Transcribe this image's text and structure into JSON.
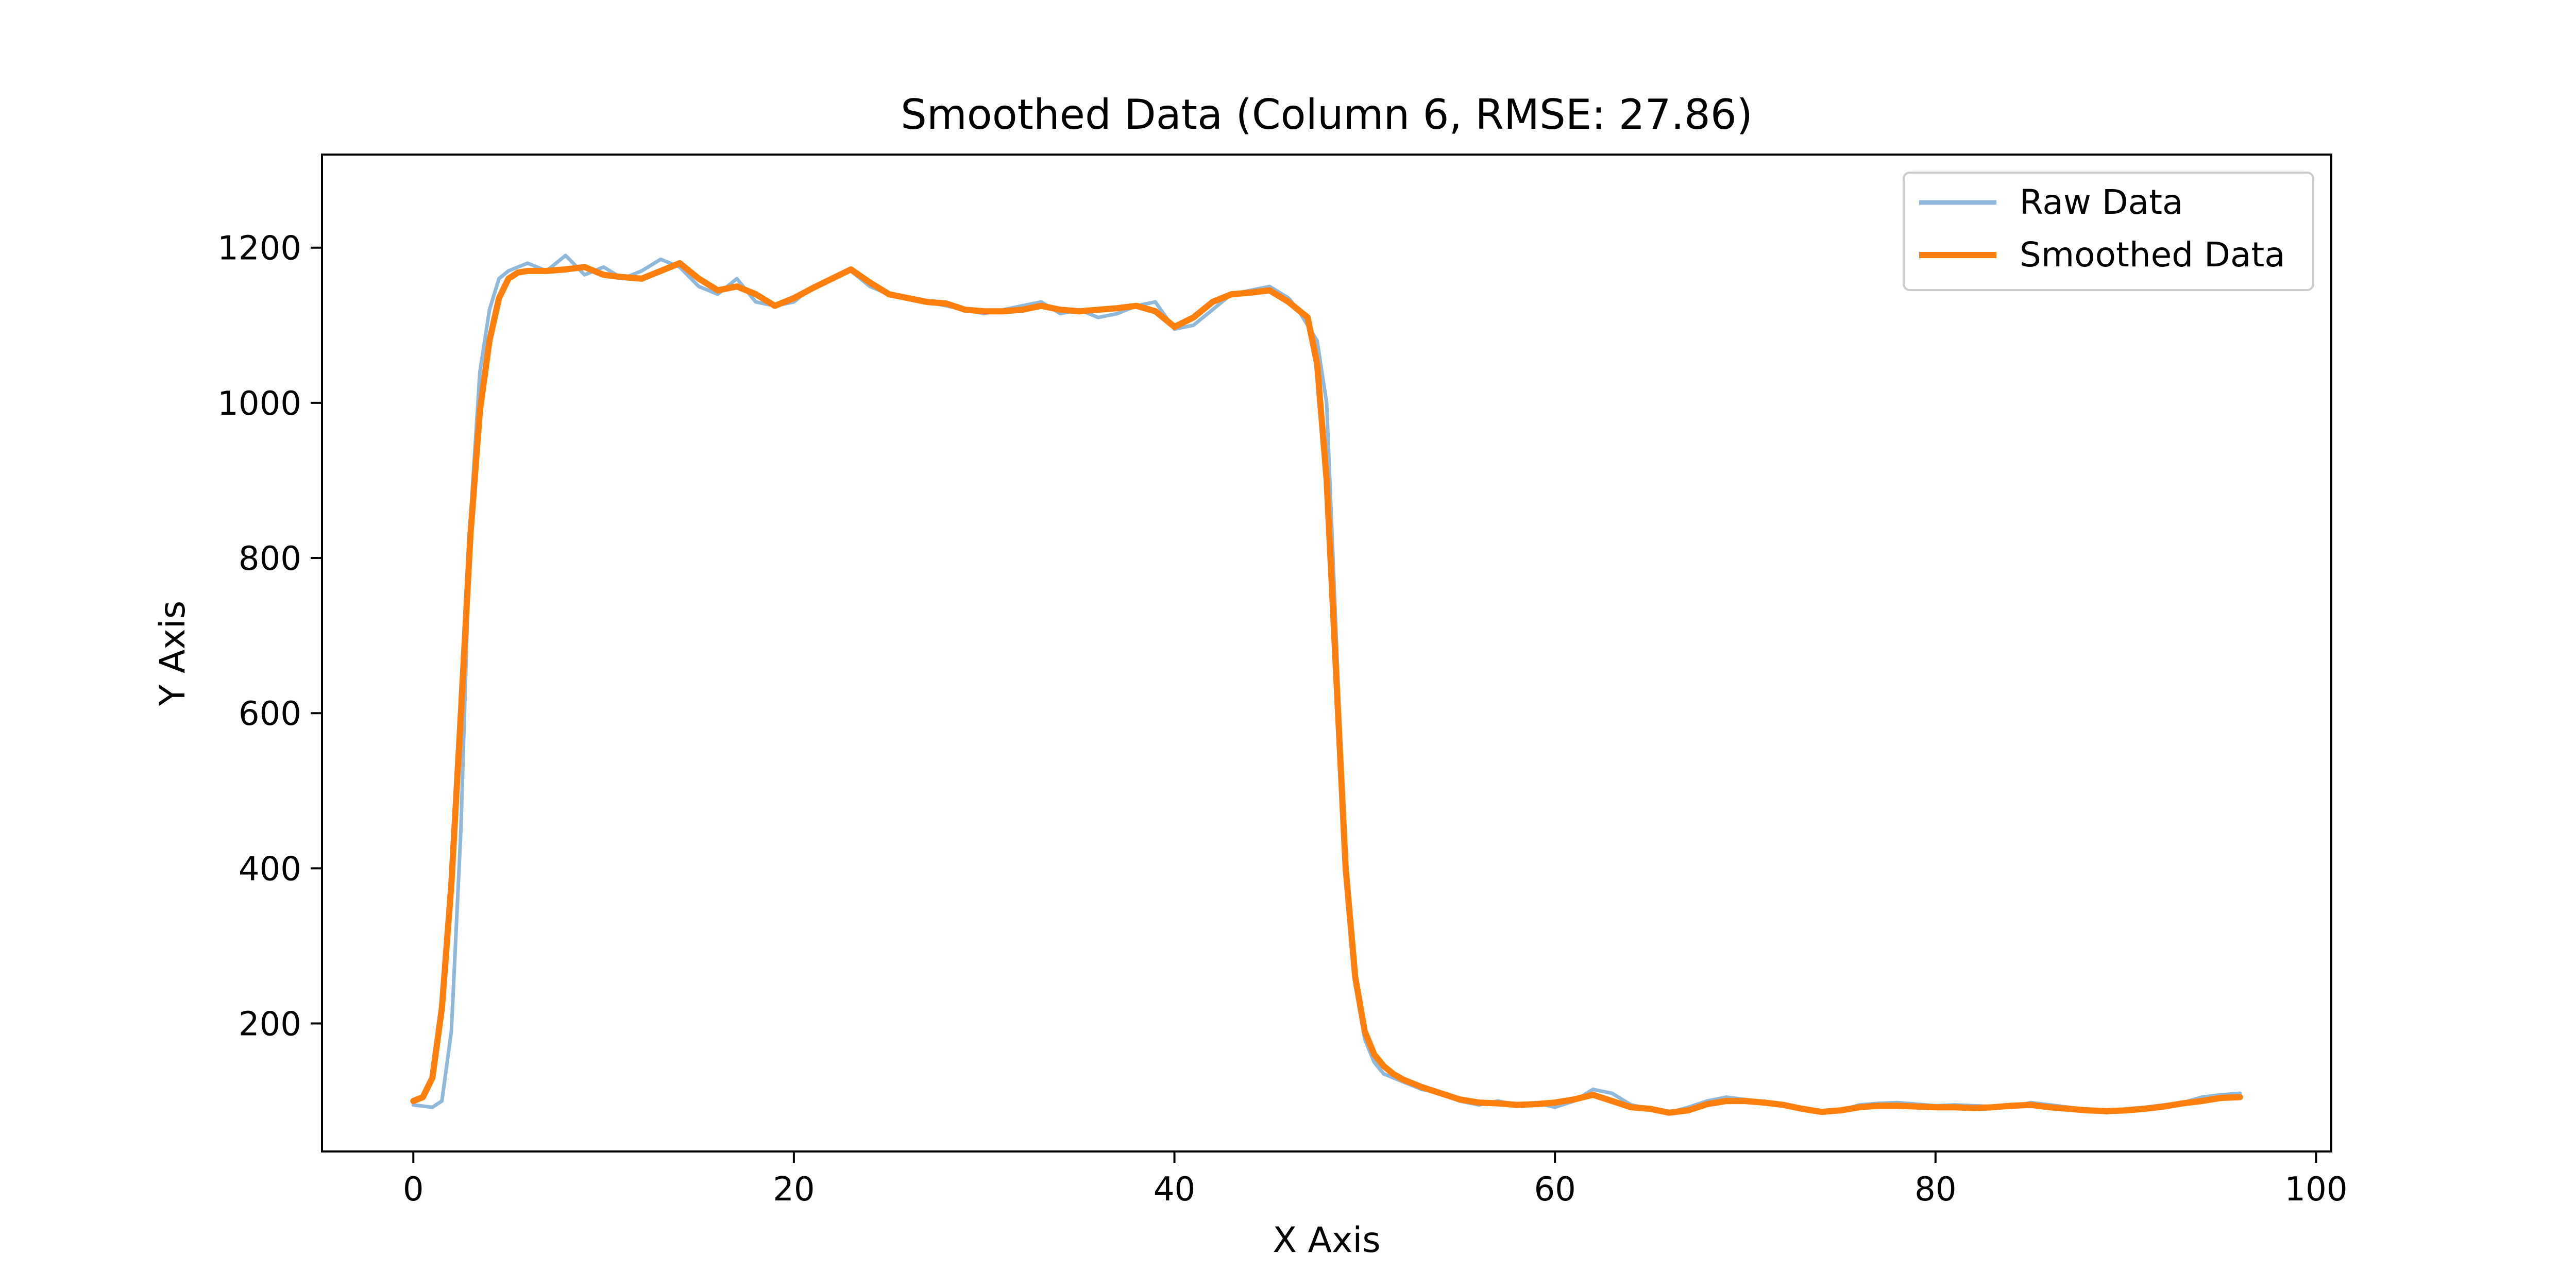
{
  "chart_data": {
    "type": "line",
    "title": "Smoothed Data (Column 6, RMSE: 27.86)",
    "xlabel": "X Axis",
    "ylabel": "Y Axis",
    "xlim": [
      -4.8,
      100.8
    ],
    "ylim": [
      35,
      1320
    ],
    "xticks": [
      0,
      20,
      40,
      60,
      80,
      100
    ],
    "yticks": [
      200,
      400,
      600,
      800,
      1000,
      1200
    ],
    "grid": false,
    "legend_position": "top-right",
    "series": [
      {
        "name": "Raw Data",
        "color": "#8fb8da",
        "x": [
          0,
          1,
          1.5,
          2,
          2.5,
          3,
          3.5,
          4,
          4.5,
          5,
          5.5,
          6,
          7,
          8,
          9,
          10,
          11,
          12,
          13,
          14,
          15,
          16,
          17,
          18,
          19,
          20,
          21,
          22,
          23,
          24,
          25,
          26,
          27,
          28,
          29,
          30,
          31,
          32,
          33,
          34,
          35,
          36,
          37,
          38,
          39,
          40,
          41,
          42,
          43,
          44,
          45,
          46,
          46.5,
          47,
          47.5,
          48,
          48.5,
          49,
          49.5,
          50,
          50.5,
          51,
          52,
          53,
          54,
          55,
          56,
          57,
          58,
          59,
          60,
          61,
          62,
          63,
          64,
          65,
          66,
          67,
          68,
          69,
          70,
          71,
          72,
          73,
          74,
          75,
          76,
          77,
          78,
          79,
          80,
          81,
          82,
          83,
          84,
          85,
          86,
          87,
          88,
          89,
          90,
          91,
          92,
          93,
          94,
          95,
          96
        ],
        "y": [
          95,
          92,
          100,
          190,
          450,
          850,
          1040,
          1120,
          1160,
          1170,
          1175,
          1180,
          1170,
          1190,
          1165,
          1175,
          1160,
          1170,
          1185,
          1175,
          1150,
          1140,
          1160,
          1130,
          1125,
          1130,
          1150,
          1160,
          1170,
          1150,
          1140,
          1135,
          1130,
          1125,
          1120,
          1115,
          1120,
          1125,
          1130,
          1115,
          1120,
          1110,
          1115,
          1125,
          1130,
          1095,
          1100,
          1120,
          1140,
          1145,
          1150,
          1135,
          1120,
          1100,
          1080,
          1000,
          700,
          400,
          250,
          180,
          150,
          135,
          125,
          115,
          110,
          100,
          95,
          100,
          95,
          98,
          92,
          100,
          115,
          110,
          95,
          90,
          85,
          92,
          100,
          105,
          102,
          98,
          95,
          90,
          85,
          88,
          95,
          97,
          98,
          96,
          94,
          95,
          94,
          93,
          92,
          98,
          95,
          92,
          88,
          85,
          90,
          92,
          95,
          98,
          105,
          108,
          110
        ]
      },
      {
        "name": "Smoothed Data",
        "color": "#ff7f0e",
        "x": [
          0,
          0.5,
          1,
          1.5,
          2,
          2.5,
          3,
          3.5,
          4,
          4.5,
          5,
          5.5,
          6,
          7,
          8,
          9,
          10,
          11,
          12,
          13,
          14,
          15,
          16,
          17,
          18,
          19,
          20,
          21,
          22,
          23,
          24,
          25,
          26,
          27,
          28,
          29,
          30,
          31,
          32,
          33,
          34,
          35,
          36,
          37,
          38,
          39,
          40,
          41,
          42,
          43,
          44,
          45,
          46,
          46.5,
          47,
          47.5,
          48,
          48.5,
          49,
          49.5,
          50,
          50.5,
          51,
          51.5,
          52,
          53,
          54,
          55,
          56,
          57,
          58,
          59,
          60,
          61,
          62,
          63,
          64,
          65,
          66,
          67,
          68,
          69,
          70,
          71,
          72,
          73,
          74,
          75,
          76,
          77,
          78,
          79,
          80,
          81,
          82,
          83,
          84,
          85,
          86,
          87,
          88,
          89,
          90,
          91,
          92,
          93,
          94,
          95,
          96
        ],
        "y": [
          100,
          105,
          130,
          220,
          380,
          600,
          830,
          990,
          1080,
          1135,
          1160,
          1168,
          1170,
          1170,
          1172,
          1175,
          1165,
          1162,
          1160,
          1170,
          1180,
          1160,
          1145,
          1150,
          1140,
          1125,
          1135,
          1148,
          1160,
          1172,
          1155,
          1140,
          1135,
          1130,
          1128,
          1120,
          1118,
          1118,
          1120,
          1125,
          1120,
          1118,
          1120,
          1122,
          1125,
          1118,
          1098,
          1110,
          1130,
          1140,
          1142,
          1145,
          1130,
          1120,
          1110,
          1050,
          900,
          650,
          400,
          260,
          190,
          160,
          145,
          135,
          128,
          118,
          110,
          102,
          98,
          97,
          95,
          96,
          98,
          102,
          108,
          100,
          92,
          90,
          85,
          88,
          96,
          100,
          100,
          98,
          95,
          90,
          86,
          88,
          92,
          94,
          94,
          93,
          92,
          92,
          91,
          92,
          94,
          95,
          92,
          90,
          88,
          87,
          88,
          90,
          93,
          97,
          100,
          104,
          105
        ]
      }
    ]
  }
}
